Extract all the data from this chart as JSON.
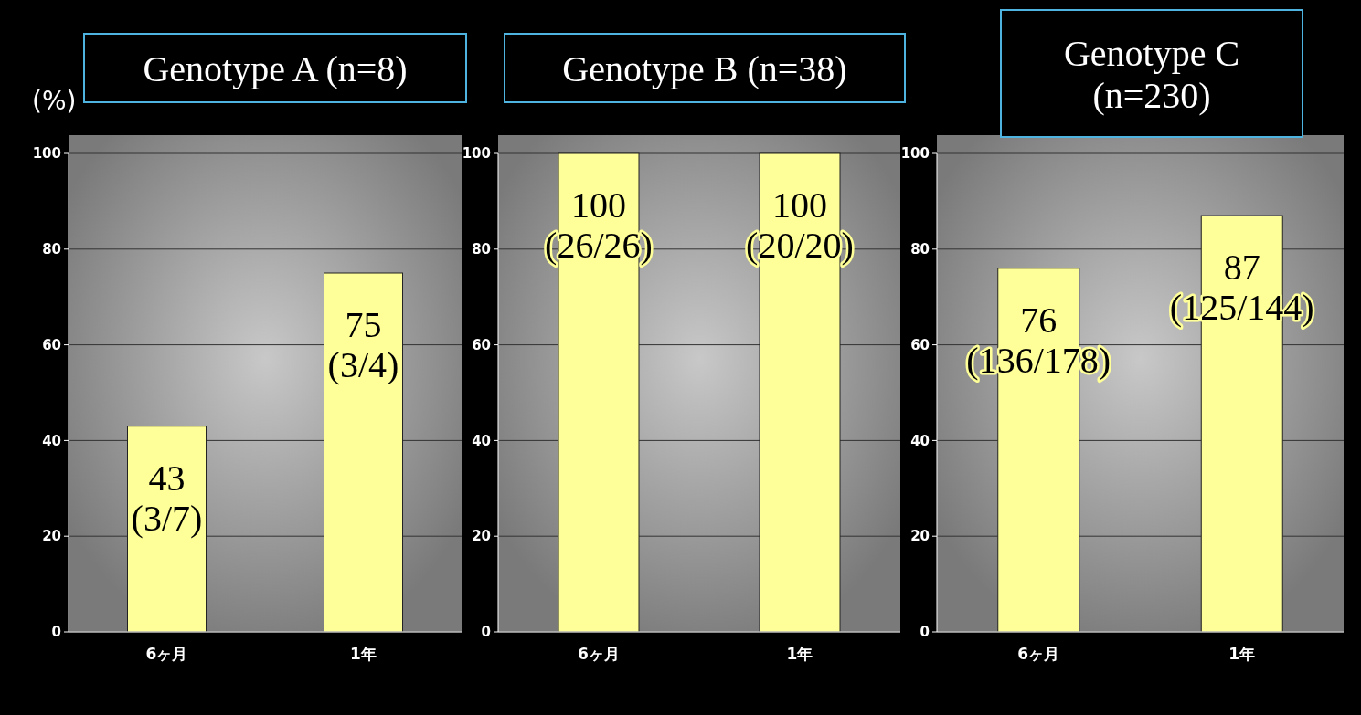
{
  "chart_data": [
    {
      "type": "bar",
      "title": "Genotype A (n=8)",
      "ylabel": "(%)",
      "categories": [
        "6ヶ月",
        "1年"
      ],
      "values": [
        43,
        75
      ],
      "value_labels": [
        "43\n(3/7)",
        "75\n(3/4)"
      ],
      "color": "#ffff99",
      "ylim": [
        0,
        100
      ],
      "yticks": [
        0,
        20,
        40,
        60,
        80,
        100
      ],
      "grid": "y"
    },
    {
      "type": "bar",
      "title": "Genotype B (n=38)",
      "categories": [
        "6ヶ月",
        "1年"
      ],
      "values": [
        100,
        100
      ],
      "value_labels": [
        "100\n(26/26)",
        "100\n(20/20)"
      ],
      "color": "#ffff99",
      "ylim": [
        0,
        100
      ],
      "yticks": [
        0,
        20,
        40,
        60,
        80,
        100
      ],
      "grid": "y"
    },
    {
      "type": "bar",
      "title": "Genotype C (n=230)",
      "categories": [
        "6ヶ月",
        "1年"
      ],
      "values": [
        76,
        87
      ],
      "value_labels": [
        "76\n(136/178)",
        "87\n(125/144)"
      ],
      "color": "#ffff99",
      "ylim": [
        0,
        100
      ],
      "yticks": [
        0,
        20,
        40,
        60,
        80,
        100
      ],
      "grid": "y"
    }
  ]
}
